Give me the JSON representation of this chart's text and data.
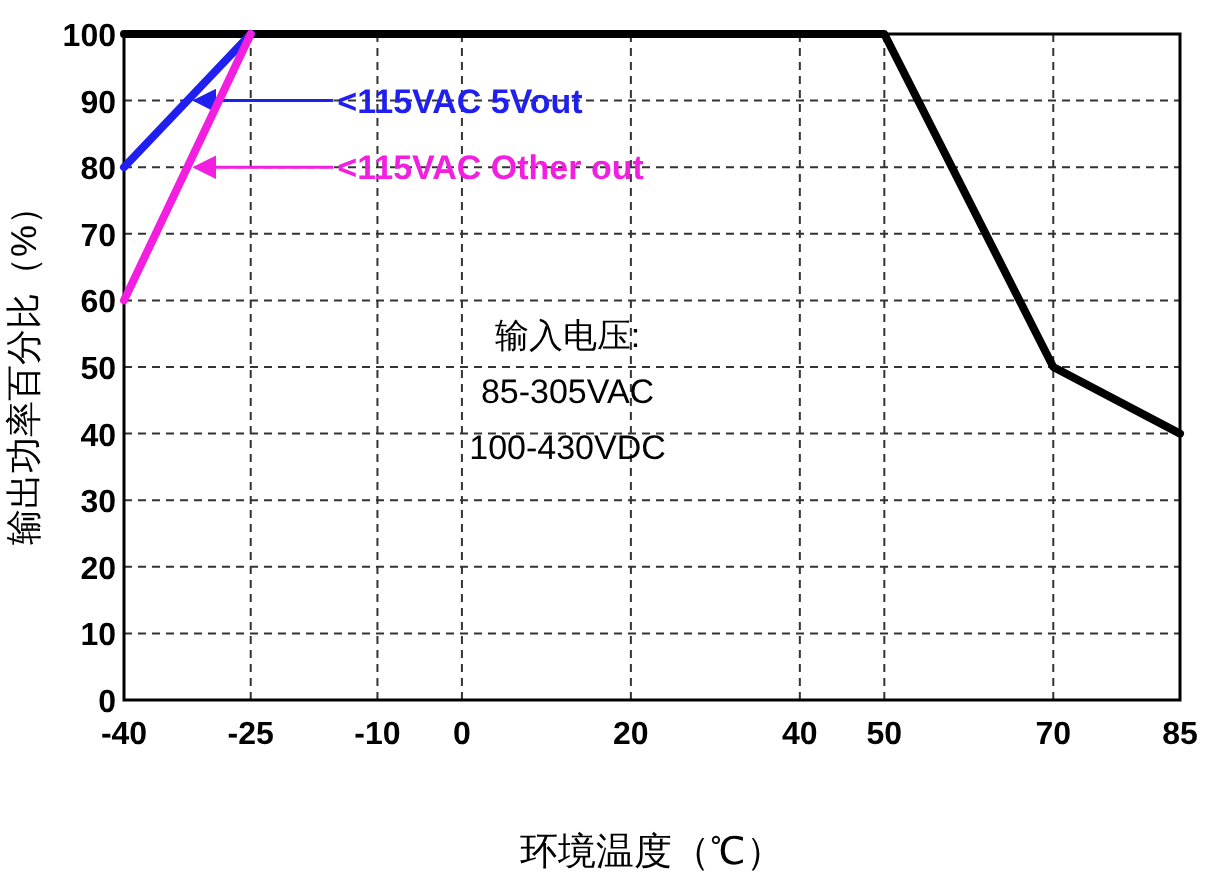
{
  "chart_data": {
    "type": "line",
    "xlabel": "环境温度（℃）",
    "ylabel": "输出功率百分比（%）",
    "xlim": [
      -40,
      85
    ],
    "xticks": [
      -40,
      -25,
      -10,
      0,
      20,
      40,
      50,
      70,
      85
    ],
    "ylim": [
      0,
      100
    ],
    "yticks": [
      0,
      10,
      20,
      30,
      40,
      50,
      60,
      70,
      80,
      90,
      100
    ],
    "grid": true,
    "line_style": "solid",
    "marker": "none",
    "legend": "top left",
    "series": [
      {
        "color": "#000000",
        "x": [
          -40,
          50,
          70,
          85
        ],
        "values": [
          100,
          100,
          50,
          40
        ]
      },
      {
        "name": "<115VAC 5Vout",
        "color": "#1f1ff0",
        "x": [
          -40,
          -25
        ],
        "values": [
          80,
          100
        ]
      },
      {
        "name": "<115VAC Other out",
        "color": "#f21ee0",
        "x": [
          -40,
          -25
        ],
        "values": [
          60,
          100
        ]
      }
    ],
    "annotations": [
      "输入电压:\n85-305VAC\n100-430VDC"
    ]
  }
}
